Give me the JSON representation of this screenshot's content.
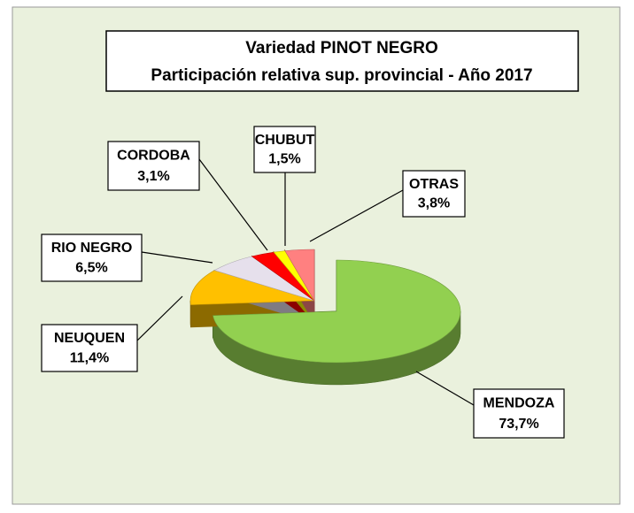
{
  "chart_data": {
    "type": "pie",
    "title": [
      "Variedad PINOT NEGRO",
      "Participación relativa sup. provincial - Año 2017"
    ],
    "categories": [
      "MENDOZA",
      "NEUQUEN",
      "RIO NEGRO",
      "CORDOBA",
      "CHUBUT",
      "OTRAS"
    ],
    "values": [
      73.7,
      11.4,
      6.5,
      3.1,
      1.5,
      3.8
    ],
    "value_labels": [
      "73,7%",
      "11,4%",
      "6,5%",
      "3,1%",
      "1,5%",
      "3,8%"
    ],
    "colors": [
      "#92d050",
      "#ffc000",
      "#e6e0ec",
      "#ff0000",
      "#ffff00",
      "#ff8080"
    ]
  }
}
